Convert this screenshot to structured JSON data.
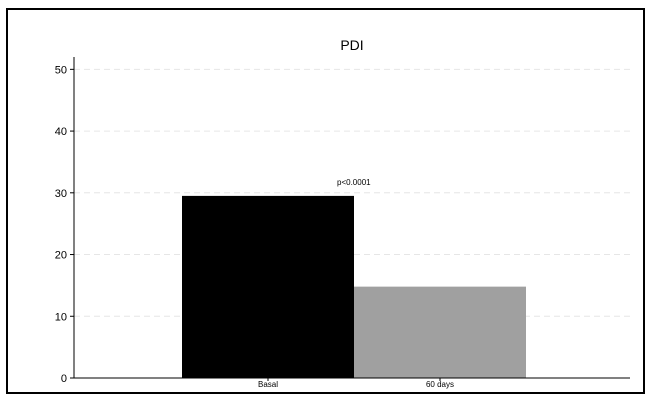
{
  "chart_data": {
    "type": "bar",
    "title": "PDI",
    "categories": [
      "Basal",
      "60 days"
    ],
    "values": [
      29.5,
      14.8
    ],
    "colors": [
      "#000000",
      "#a0a0a0"
    ],
    "ylim": [
      0,
      52
    ],
    "yticks": [
      0,
      10,
      20,
      30,
      40,
      50
    ],
    "annotation": "p<0.0001",
    "grid": true,
    "xlabel": "",
    "ylabel": ""
  }
}
